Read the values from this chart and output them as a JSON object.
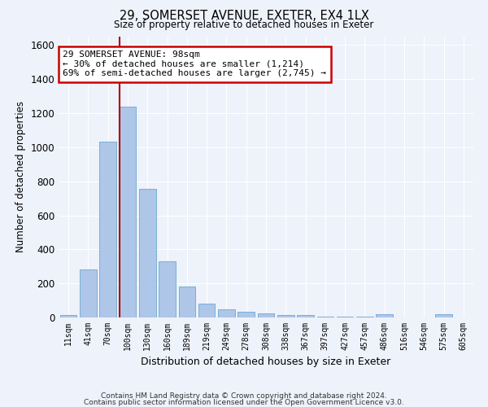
{
  "title1": "29, SOMERSET AVENUE, EXETER, EX4 1LX",
  "title2": "Size of property relative to detached houses in Exeter",
  "xlabel": "Distribution of detached houses by size in Exeter",
  "ylabel": "Number of detached properties",
  "categories": [
    "11sqm",
    "41sqm",
    "70sqm",
    "100sqm",
    "130sqm",
    "160sqm",
    "189sqm",
    "219sqm",
    "249sqm",
    "278sqm",
    "308sqm",
    "338sqm",
    "367sqm",
    "397sqm",
    "427sqm",
    "457sqm",
    "486sqm",
    "516sqm",
    "546sqm",
    "575sqm",
    "605sqm"
  ],
  "values": [
    12,
    280,
    1035,
    1240,
    755,
    330,
    180,
    82,
    48,
    35,
    25,
    15,
    12,
    5,
    5,
    3,
    18,
    1,
    0,
    18,
    0
  ],
  "bar_color": "#aec6e8",
  "bar_edgecolor": "#7aafd4",
  "vline_color": "#aa0000",
  "annotation_text": "29 SOMERSET AVENUE: 98sqm\n← 30% of detached houses are smaller (1,214)\n69% of semi-detached houses are larger (2,745) →",
  "annotation_box_edgecolor": "#cc0000",
  "annotation_box_facecolor": "#ffffff",
  "footer1": "Contains HM Land Registry data © Crown copyright and database right 2024.",
  "footer2": "Contains public sector information licensed under the Open Government Licence v3.0.",
  "ylim": [
    0,
    1650
  ],
  "yticks": [
    0,
    200,
    400,
    600,
    800,
    1000,
    1200,
    1400,
    1600
  ],
  "background_color": "#eef2fb",
  "grid_color": "#ffffff"
}
